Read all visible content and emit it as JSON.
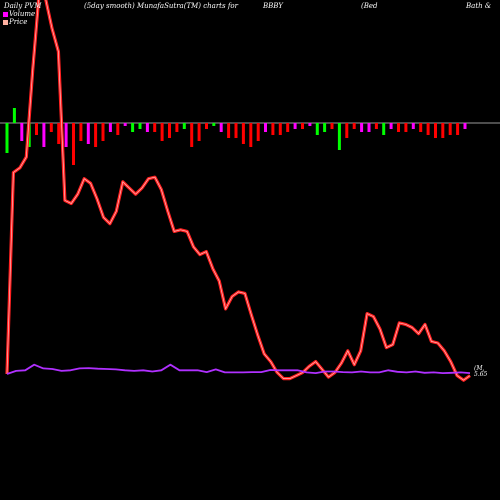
{
  "header": {
    "left": "Daily PVM",
    "center": "(5day smooth) MunafaSutra(TM) charts for",
    "ticker": "BBBY",
    "name_open": "(Bed",
    "name_rest": "Bath &"
  },
  "legend": {
    "volume_label": "Volume",
    "price_label": "Price",
    "volume_color": "#ff00ff",
    "price_color": "#ffb0a0"
  },
  "end_label": {
    "line1": "(M,",
    "line2": "5.65"
  },
  "colors": {
    "background": "#000000",
    "price_line": "#ff2020",
    "price_line_glow": "#ffffff",
    "volume_line": "#b030ff",
    "up_bar": "#00ff00",
    "down_bar": "#ff0000",
    "neutral_bar": "#ff00ff",
    "zero_line": "#9a9a9a"
  },
  "chart_data": {
    "type": "line",
    "title": "",
    "note": "",
    "series": [
      {
        "values": [
          0.0,
          65.0,
          66.5,
          70.0,
          98.0,
          123.0,
          121.0,
          111.5,
          104.0,
          56.0,
          55.0,
          58.0,
          63.0,
          61.5,
          56.5,
          50.5,
          48.5,
          52.5,
          62.0,
          60.0,
          58.0,
          60.0,
          63.0,
          63.5,
          59.5,
          52.5,
          46.0,
          46.5,
          46.0,
          41.0,
          38.5,
          39.5,
          34.0,
          30.0,
          21.0,
          25.0,
          26.5,
          26.0,
          19.0,
          12.5,
          6.5,
          4.0,
          0.5,
          -1.5,
          -1.5,
          -0.5,
          0.5,
          2.5,
          4.0,
          1.5,
          -1.0,
          0.5,
          3.5,
          7.5,
          3.0,
          7.5,
          19.5,
          18.5,
          14.5,
          8.5,
          9.5,
          16.5,
          16.0,
          15.0,
          13.0,
          16.0,
          10.5,
          10.0,
          7.5,
          4.0,
          -0.5,
          -2.0,
          -0.5
        ]
      },
      {
        "values": [
          0.0,
          1.0,
          1.2,
          3.0,
          1.8,
          1.6,
          1.0,
          1.2,
          1.8,
          1.9,
          1.7,
          1.6,
          1.5,
          1.2,
          1.0,
          1.2,
          0.8,
          1.2,
          3.0,
          1.2,
          1.2,
          1.2,
          0.6,
          1.5,
          0.5,
          0.5,
          0.5,
          0.6,
          0.6,
          1.3,
          1.2,
          1.2,
          1.2,
          0.5,
          0.3,
          0.8,
          0.8,
          0.6,
          0.5,
          0.8,
          0.5,
          0.5,
          1.2,
          0.7,
          0.5,
          0.8,
          0.4,
          0.5,
          0.3,
          0.4,
          0.5,
          0.3
        ]
      }
    ],
    "volume_bars": [
      {
        "value": -10,
        "color": "green"
      },
      {
        "value": 5,
        "color": "green"
      },
      {
        "value": -6,
        "color": "magenta"
      },
      {
        "value": -8,
        "color": "green"
      },
      {
        "value": -4,
        "color": "red"
      },
      {
        "value": -8,
        "color": "magenta"
      },
      {
        "value": -3,
        "color": "red"
      },
      {
        "value": -7,
        "color": "red"
      },
      {
        "value": -8,
        "color": "magenta"
      },
      {
        "value": -14,
        "color": "red"
      },
      {
        "value": -6,
        "color": "red"
      },
      {
        "value": -7,
        "color": "magenta"
      },
      {
        "value": -8,
        "color": "red"
      },
      {
        "value": -6,
        "color": "red"
      },
      {
        "value": -3,
        "color": "magenta"
      },
      {
        "value": -4,
        "color": "red"
      },
      {
        "value": -1,
        "color": "magenta"
      },
      {
        "value": -3,
        "color": "green"
      },
      {
        "value": -2,
        "color": "green"
      },
      {
        "value": -3,
        "color": "magenta"
      },
      {
        "value": -3,
        "color": "red"
      },
      {
        "value": -6,
        "color": "red"
      },
      {
        "value": -5,
        "color": "red"
      },
      {
        "value": -3,
        "color": "red"
      },
      {
        "value": -2,
        "color": "green"
      },
      {
        "value": -8,
        "color": "red"
      },
      {
        "value": -6,
        "color": "red"
      },
      {
        "value": -2,
        "color": "red"
      },
      {
        "value": -1,
        "color": "green"
      },
      {
        "value": -3,
        "color": "magenta"
      },
      {
        "value": -5,
        "color": "red"
      },
      {
        "value": -5,
        "color": "red"
      },
      {
        "value": -7,
        "color": "red"
      },
      {
        "value": -8,
        "color": "red"
      },
      {
        "value": -6,
        "color": "red"
      },
      {
        "value": -3,
        "color": "magenta"
      },
      {
        "value": -4,
        "color": "red"
      },
      {
        "value": -4,
        "color": "red"
      },
      {
        "value": -3,
        "color": "red"
      },
      {
        "value": -2,
        "color": "magenta"
      },
      {
        "value": -2,
        "color": "red"
      },
      {
        "value": -1,
        "color": "magenta"
      },
      {
        "value": -4,
        "color": "green"
      },
      {
        "value": -3,
        "color": "green"
      },
      {
        "value": -2,
        "color": "red"
      },
      {
        "value": -9,
        "color": "green"
      },
      {
        "value": -5,
        "color": "red"
      },
      {
        "value": -2,
        "color": "red"
      },
      {
        "value": -3,
        "color": "magenta"
      },
      {
        "value": -3,
        "color": "magenta"
      },
      {
        "value": -2,
        "color": "red"
      },
      {
        "value": -4,
        "color": "green"
      },
      {
        "value": -2,
        "color": "magenta"
      },
      {
        "value": -3,
        "color": "red"
      },
      {
        "value": -3,
        "color": "red"
      },
      {
        "value": -2,
        "color": "magenta"
      },
      {
        "value": -3,
        "color": "red"
      },
      {
        "value": -4,
        "color": "red"
      },
      {
        "value": -5,
        "color": "red"
      },
      {
        "value": -5,
        "color": "red"
      },
      {
        "value": -4,
        "color": "red"
      },
      {
        "value": -4,
        "color": "red"
      },
      {
        "value": -2,
        "color": "magenta"
      }
    ],
    "grid": false,
    "legend_position": "top-left"
  }
}
